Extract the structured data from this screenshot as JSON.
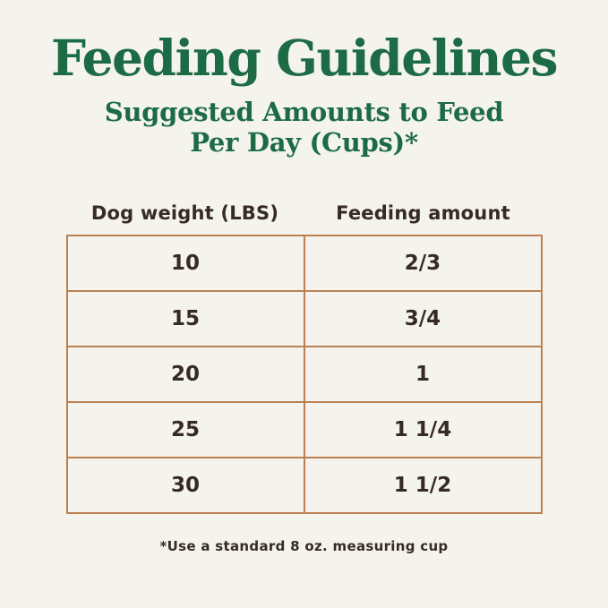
{
  "title": "Feeding Guidelines",
  "subtitle_line1": "Suggested Amounts to Feed",
  "subtitle_line2": "Per Day (Cups)*",
  "table": {
    "col1_header": "Dog weight (LBS)",
    "col2_header": "Feeding amount",
    "rows": [
      {
        "weight": "10",
        "amount": "2/3"
      },
      {
        "weight": "15",
        "amount": "3/4"
      },
      {
        "weight": "20",
        "amount": "1"
      },
      {
        "weight": "25",
        "amount": "1 1/4"
      },
      {
        "weight": "30",
        "amount": "1 1/2"
      }
    ]
  },
  "footnote": "*Use a standard 8 oz. measuring cup",
  "colors": {
    "title_green": "#1c6b45",
    "table_border": "#bc8152",
    "text_dark": "#362a23",
    "background": "#f4f3ed"
  },
  "chart_data": {
    "type": "table",
    "title": "Feeding Guidelines",
    "subtitle": "Suggested Amounts to Feed Per Day (Cups)*",
    "columns": [
      "Dog weight (LBS)",
      "Feeding amount"
    ],
    "rows": [
      [
        "10",
        "2/3"
      ],
      [
        "15",
        "3/4"
      ],
      [
        "20",
        "1"
      ],
      [
        "25",
        "1 1/4"
      ],
      [
        "30",
        "1 1/2"
      ]
    ],
    "footnote": "*Use a standard 8 oz. measuring cup"
  }
}
